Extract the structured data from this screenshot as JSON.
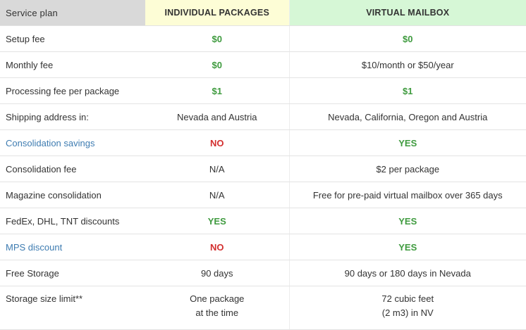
{
  "header": {
    "service_plan": "Service plan",
    "individual": "INDIVIDUAL PACKAGES",
    "virtual": "VIRTUAL MAILBOX"
  },
  "rows": [
    {
      "label": "Setup fee",
      "individual": "$0",
      "virtual": "$0"
    },
    {
      "label": "Monthly fee",
      "individual": "$0",
      "virtual": "$10/month or $50/year"
    },
    {
      "label": "Processing fee per package",
      "individual": "$1",
      "virtual": "$1"
    },
    {
      "label": "Shipping address in:",
      "individual": "Nevada and Austria",
      "virtual": "Nevada, California, Oregon and Austria"
    },
    {
      "label": "Consolidation savings",
      "individual": "NO",
      "virtual": "YES"
    },
    {
      "label": "Consolidation fee",
      "individual": "N/A",
      "virtual": "$2 per package"
    },
    {
      "label": "Magazine consolidation",
      "individual": "N/A",
      "virtual": "Free for pre-paid virtual mailbox over 365 days"
    },
    {
      "label": "FedEx, DHL, TNT discounts",
      "individual": "YES",
      "virtual": "YES"
    },
    {
      "label": "MPS discount",
      "individual": "NO",
      "virtual": "YES"
    },
    {
      "label": "Free Storage",
      "individual": "90 days",
      "virtual": "90 days or 180 days in Nevada"
    },
    {
      "label": "Storage size limit**",
      "individual_line1": "One package",
      "individual_line2": "at the time",
      "virtual_line1": "72 cubic feet",
      "virtual_line2": "(2 m3) in NV"
    }
  ],
  "colors": {
    "header_label_bg": "#d9d9d9",
    "header_individual_bg": "#fdfdd6",
    "header_virtual_bg": "#d6f7d6",
    "positive": "#3f9b3f",
    "negative": "#d32f2f",
    "link": "#3e7cb1"
  }
}
